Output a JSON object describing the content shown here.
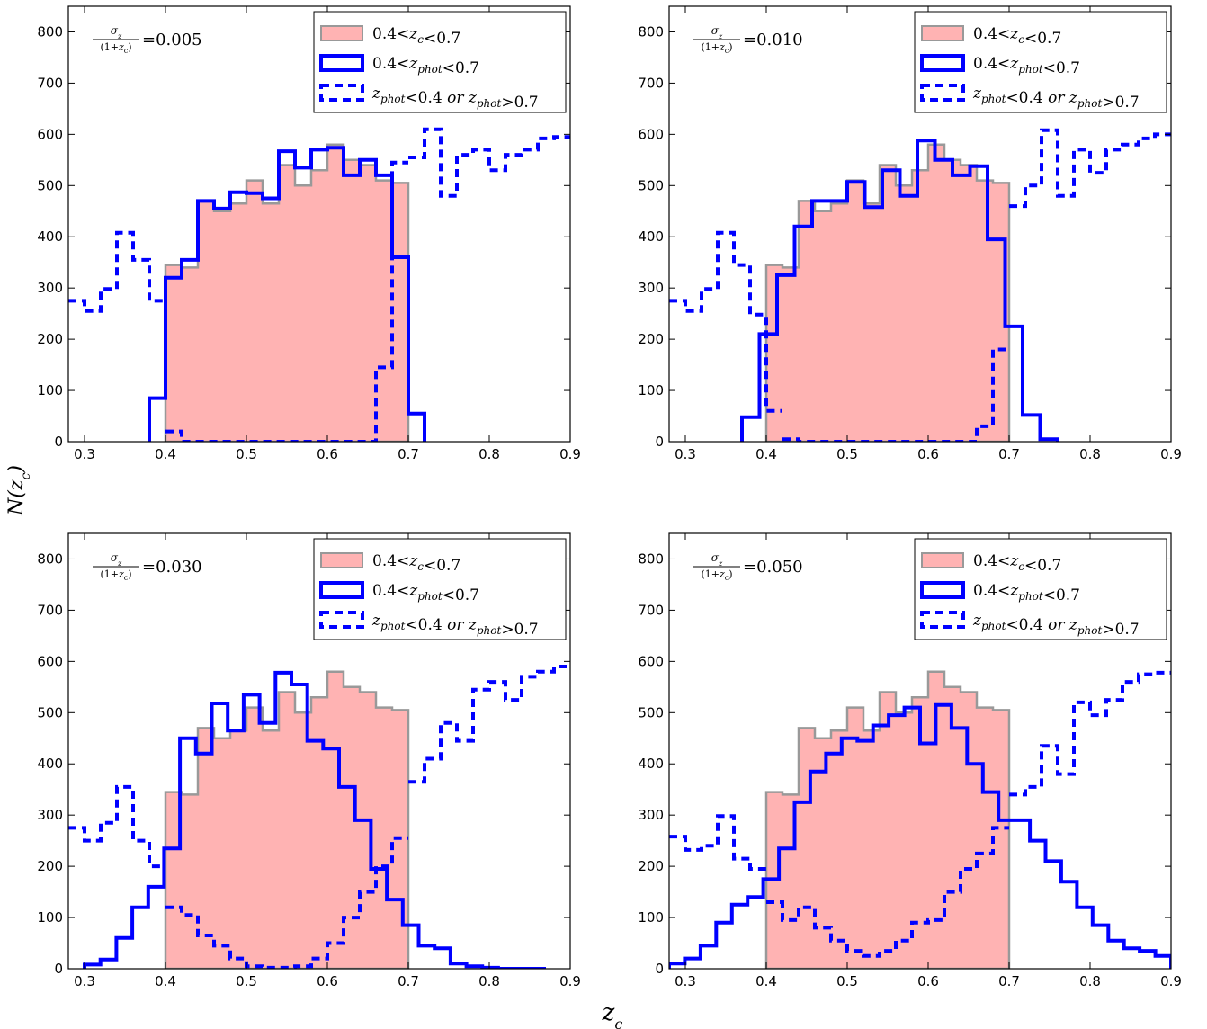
{
  "figure": {
    "ylabel": "N(z_c)",
    "xlabel": "z_c"
  },
  "colors": {
    "true_fill": "#ffb3b3",
    "true_edge": "#999999",
    "phot": "#0000ff"
  },
  "legend_entries": [
    "0.4<z_c<0.7",
    "0.4<z_phot<0.7",
    "z_phot<0.4 or z_phot>0.7"
  ],
  "chart_data": [
    {
      "type": "histogram",
      "annotation": {
        "prefix_num": "σ_z",
        "prefix_den": "(1+z_c)",
        "value": "=0.005"
      },
      "xlim": [
        0.28,
        0.9
      ],
      "ylim": [
        0,
        850
      ],
      "xticks": [
        "0.3",
        "0.4",
        "0.5",
        "0.6",
        "0.7",
        "0.8",
        "0.9"
      ],
      "yticks": [
        "0",
        "100",
        "200",
        "300",
        "400",
        "500",
        "600",
        "700",
        "800"
      ],
      "legend_position": "top-right",
      "bin_edges": [
        0.28,
        0.29,
        0.31,
        0.33,
        0.35,
        0.36,
        0.38,
        0.39,
        0.4,
        0.42,
        0.44,
        0.46,
        0.48,
        0.5,
        0.52,
        0.54,
        0.56,
        0.58,
        0.6,
        0.62,
        0.64,
        0.66,
        0.68,
        0.7,
        0.72,
        0.74,
        0.76,
        0.78,
        0.8,
        0.82,
        0.84,
        0.86,
        0.88,
        0.9
      ],
      "series": [
        {
          "name": "0.4<z_c<0.7",
          "style": "filled",
          "x_range": [
            0.4,
            0.7
          ],
          "values": [
            345,
            340,
            470,
            450,
            465,
            510,
            465,
            540,
            500,
            530,
            580,
            550,
            540,
            510,
            505
          ]
        },
        {
          "name": "0.4<z_phot<0.7",
          "style": "solid",
          "x_range": [
            0.38,
            0.72
          ],
          "values": [
            85,
            320,
            355,
            470,
            455,
            487,
            485,
            475,
            567,
            535,
            570,
            574,
            520,
            550,
            520,
            360,
            55
          ]
        },
        {
          "name": "z_phot<0.4 or z_phot>0.7",
          "style": "dashed",
          "segments": [
            {
              "x_range": [
                0.28,
                0.4
              ],
              "values": [
                275,
                255,
                298,
                408,
                355,
                275
              ]
            },
            {
              "x_range": [
                0.4,
                0.7
              ],
              "values": [
                20,
                0,
                0,
                0,
                0,
                0,
                0,
                0,
                0,
                0,
                0,
                0,
                0,
                145,
                545
              ]
            },
            {
              "x_range": [
                0.7,
                0.9
              ],
              "values": [
                555,
                610,
                480,
                560,
                570,
                530,
                560,
                570,
                592,
                595
              ]
            }
          ]
        }
      ]
    },
    {
      "type": "histogram",
      "annotation": {
        "prefix_num": "σ_z",
        "prefix_den": "(1+z_c)",
        "value": "=0.010"
      },
      "xlim": [
        0.28,
        0.9
      ],
      "ylim": [
        0,
        850
      ],
      "xticks": [
        "0.3",
        "0.4",
        "0.5",
        "0.6",
        "0.7",
        "0.8",
        "0.9"
      ],
      "yticks": [
        "0",
        "100",
        "200",
        "300",
        "400",
        "500",
        "600",
        "700",
        "800"
      ],
      "legend_position": "top-right",
      "series": [
        {
          "name": "0.4<z_c<0.7",
          "style": "filled",
          "x_range": [
            0.4,
            0.7
          ],
          "values": [
            345,
            340,
            470,
            450,
            465,
            510,
            465,
            540,
            500,
            530,
            580,
            550,
            540,
            510,
            505
          ]
        },
        {
          "name": "0.4<z_phot<0.7",
          "style": "solid",
          "x_range": [
            0.37,
            0.76
          ],
          "values": [
            48,
            210,
            325,
            420,
            470,
            470,
            507,
            458,
            530,
            480,
            588,
            550,
            520,
            538,
            395,
            225,
            52,
            5
          ]
        },
        {
          "name": "z_phot<0.4 or z_phot>0.7",
          "style": "dashed",
          "segments": [
            {
              "x_range": [
                0.28,
                0.42
              ],
              "values": [
                275,
                255,
                298,
                408,
                345,
                248,
                60
              ]
            },
            {
              "x_range": [
                0.42,
                0.7
              ],
              "values": [
                5,
                0,
                0,
                0,
                0,
                0,
                0,
                0,
                0,
                0,
                0,
                0,
                30,
                180
              ]
            },
            {
              "x_range": [
                0.7,
                0.9
              ],
              "values": [
                460,
                500,
                608,
                480,
                570,
                525,
                570,
                580,
                592,
                600
              ]
            }
          ]
        }
      ]
    },
    {
      "type": "histogram",
      "annotation": {
        "prefix_num": "σ_z",
        "prefix_den": "(1+z_c)",
        "value": "=0.030"
      },
      "xlim": [
        0.28,
        0.9
      ],
      "ylim": [
        0,
        850
      ],
      "xticks": [
        "0.3",
        "0.4",
        "0.5",
        "0.6",
        "0.7",
        "0.8",
        "0.9"
      ],
      "yticks": [
        "0",
        "100",
        "200",
        "300",
        "400",
        "500",
        "600",
        "700",
        "800"
      ],
      "legend_position": "top-right",
      "series": [
        {
          "name": "0.4<z_c<0.7",
          "style": "filled",
          "x_range": [
            0.4,
            0.7
          ],
          "values": [
            345,
            340,
            470,
            450,
            465,
            510,
            465,
            540,
            500,
            530,
            580,
            550,
            540,
            510,
            505
          ]
        },
        {
          "name": "0.4<z_phot<0.7",
          "style": "solid",
          "x_range": [
            0.3,
            0.87
          ],
          "values": [
            8,
            18,
            60,
            120,
            160,
            235,
            450,
            420,
            518,
            465,
            535,
            480,
            578,
            555,
            445,
            430,
            355,
            290,
            195,
            135,
            85,
            45,
            40,
            10,
            5,
            2,
            0,
            0,
            0
          ]
        },
        {
          "name": "z_phot<0.4 or z_phot>0.7",
          "style": "dashed",
          "segments": [
            {
              "x_range": [
                0.28,
                0.4
              ],
              "values": [
                275,
                250,
                285,
                355,
                250,
                200
              ]
            },
            {
              "x_range": [
                0.4,
                0.7
              ],
              "values": [
                120,
                105,
                65,
                45,
                20,
                5,
                2,
                2,
                5,
                20,
                50,
                100,
                150,
                200,
                255
              ]
            },
            {
              "x_range": [
                0.7,
                0.9
              ],
              "values": [
                365,
                410,
                480,
                445,
                545,
                560,
                525,
                570,
                580,
                590
              ]
            }
          ]
        }
      ]
    },
    {
      "type": "histogram",
      "annotation": {
        "prefix_num": "σ_z",
        "prefix_den": "(1+z_c)",
        "value": "=0.050"
      },
      "xlim": [
        0.28,
        0.9
      ],
      "ylim": [
        0,
        850
      ],
      "xticks": [
        "0.3",
        "0.4",
        "0.5",
        "0.6",
        "0.7",
        "0.8",
        "0.9"
      ],
      "yticks": [
        "0",
        "100",
        "200",
        "300",
        "400",
        "500",
        "600",
        "700",
        "800"
      ],
      "legend_position": "top-right",
      "series": [
        {
          "name": "0.4<z_c<0.7",
          "style": "filled",
          "x_range": [
            0.4,
            0.7
          ],
          "values": [
            345,
            340,
            470,
            450,
            465,
            510,
            465,
            540,
            500,
            530,
            580,
            550,
            540,
            510,
            505
          ]
        },
        {
          "name": "0.4<z_phot<0.7",
          "style": "solid",
          "x_range": [
            0.28,
            0.9
          ],
          "values": [
            10,
            20,
            45,
            90,
            125,
            140,
            175,
            235,
            325,
            385,
            420,
            450,
            445,
            475,
            495,
            510,
            440,
            515,
            470,
            400,
            345,
            290,
            290,
            250,
            210,
            170,
            120,
            85,
            55,
            40,
            35,
            25
          ]
        },
        {
          "name": "z_phot<0.4 or z_phot>0.7",
          "style": "dashed",
          "segments": [
            {
              "x_range": [
                0.28,
                0.4
              ],
              "values": [
                258,
                232,
                240,
                298,
                215,
                195
              ]
            },
            {
              "x_range": [
                0.4,
                0.7
              ],
              "values": [
                130,
                95,
                120,
                80,
                55,
                35,
                25,
                35,
                55,
                90,
                95,
                150,
                195,
                225,
                275
              ]
            },
            {
              "x_range": [
                0.7,
                0.9
              ],
              "values": [
                340,
                355,
                435,
                380,
                520,
                495,
                525,
                560,
                575,
                578
              ]
            }
          ]
        }
      ]
    }
  ]
}
